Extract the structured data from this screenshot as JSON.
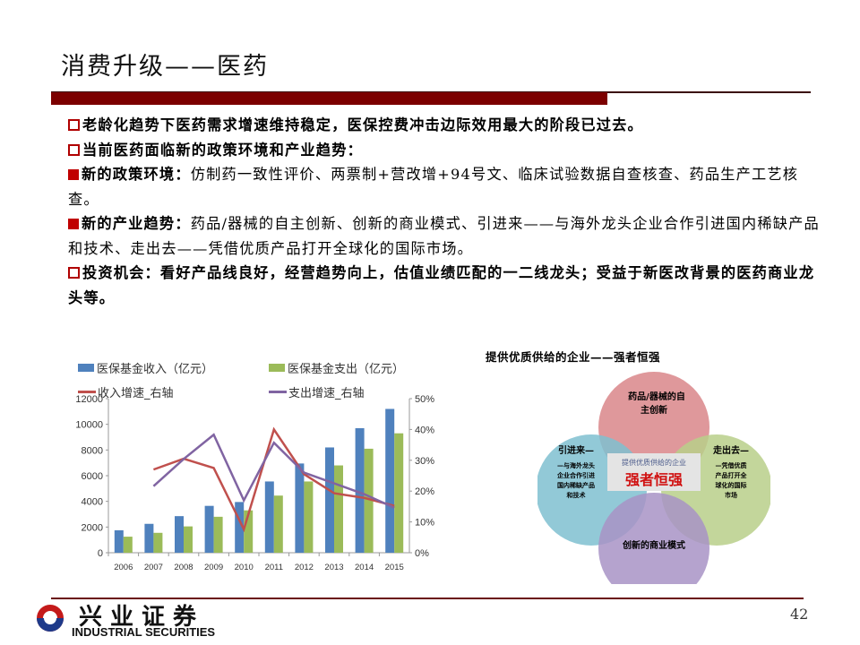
{
  "slide": {
    "title": "消费升级——医药",
    "page_number": "42",
    "accent_color": "#7c0000"
  },
  "bullets": [
    {
      "type": "hollow",
      "bold": "老龄化趋势下医药需求增速维持稳定，医保控费冲击边际效用最大的阶段已过去。",
      "text": ""
    },
    {
      "type": "hollow",
      "bold": "当前医药面临新的政策环境和产业趋势：",
      "text": ""
    },
    {
      "type": "solid",
      "bold": "新的政策环境：",
      "text": "仿制药一致性评价、两票制+营改增+94号文、临床试验数据自查核查、药品生产工艺核查。"
    },
    {
      "type": "solid",
      "bold": "新的产业趋势：",
      "text": "药品/器械的自主创新、创新的商业模式、引进来——与海外龙头企业合作引进国内稀缺产品和技术、走出去——凭借优质产品打开全球化的国际市场。"
    },
    {
      "type": "hollow",
      "bold": "投资机会：看好产品线良好，经营趋势向上，估值业绩匹配的一二线龙头；受益于新医改背景的医药商业龙头等。",
      "text": ""
    }
  ],
  "chart_data": {
    "type": "bar",
    "title": "",
    "categories": [
      "2006",
      "2007",
      "2008",
      "2009",
      "2010",
      "2011",
      "2012",
      "2013",
      "2014",
      "2015"
    ],
    "series": [
      {
        "name": "医保基金收入（亿元）",
        "kind": "bar",
        "axis": "left",
        "color": "#4f81bd",
        "values": [
          1750,
          2250,
          2850,
          3650,
          3950,
          5550,
          6950,
          8200,
          9700,
          11200
        ]
      },
      {
        "name": "医保基金支出（亿元）",
        "kind": "bar",
        "axis": "left",
        "color": "#9bbb59",
        "values": [
          1250,
          1550,
          2050,
          2800,
          3300,
          4450,
          5550,
          6800,
          8100,
          9300
        ]
      },
      {
        "name": "收入增速_右轴",
        "kind": "line",
        "axis": "right",
        "color": "#c0504d",
        "values": [
          null,
          27.0,
          30.5,
          27.5,
          7.6,
          40.0,
          25.5,
          19.3,
          17.8,
          15.2
        ]
      },
      {
        "name": "支出增速_右轴",
        "kind": "line",
        "axis": "right",
        "color": "#8064a2",
        "values": [
          null,
          21.6,
          30.4,
          38.3,
          17.0,
          35.7,
          26.0,
          22.5,
          19.0,
          14.6
        ]
      }
    ],
    "left_axis": {
      "ticks": [
        "0",
        "2000",
        "4000",
        "6000",
        "8000",
        "10000",
        "12000"
      ],
      "ylim": [
        0,
        12000
      ]
    },
    "right_axis": {
      "ticks": [
        "0%",
        "10%",
        "20%",
        "30%",
        "40%",
        "50%"
      ],
      "ylim": [
        0,
        50
      ]
    },
    "legend_position": "top",
    "grid": false
  },
  "diagram": {
    "title": "提供优质供给的企业——强者恒强",
    "top": "药品/器械的自主创新",
    "left_title": "引进来—",
    "left_body": "—与海外龙头企业合作引进国内稀缺产品和技术",
    "right_title": "走出去—",
    "right_body": "—凭借优质产品打开全球化的国际市场",
    "bottom": "创新的商业模式",
    "center_sub": "提供优质供给的企业",
    "center_main": "强者恒强"
  },
  "footer": {
    "logo_cn": "兴业证券",
    "logo_en": "INDUSTRIAL SECURITIES"
  }
}
